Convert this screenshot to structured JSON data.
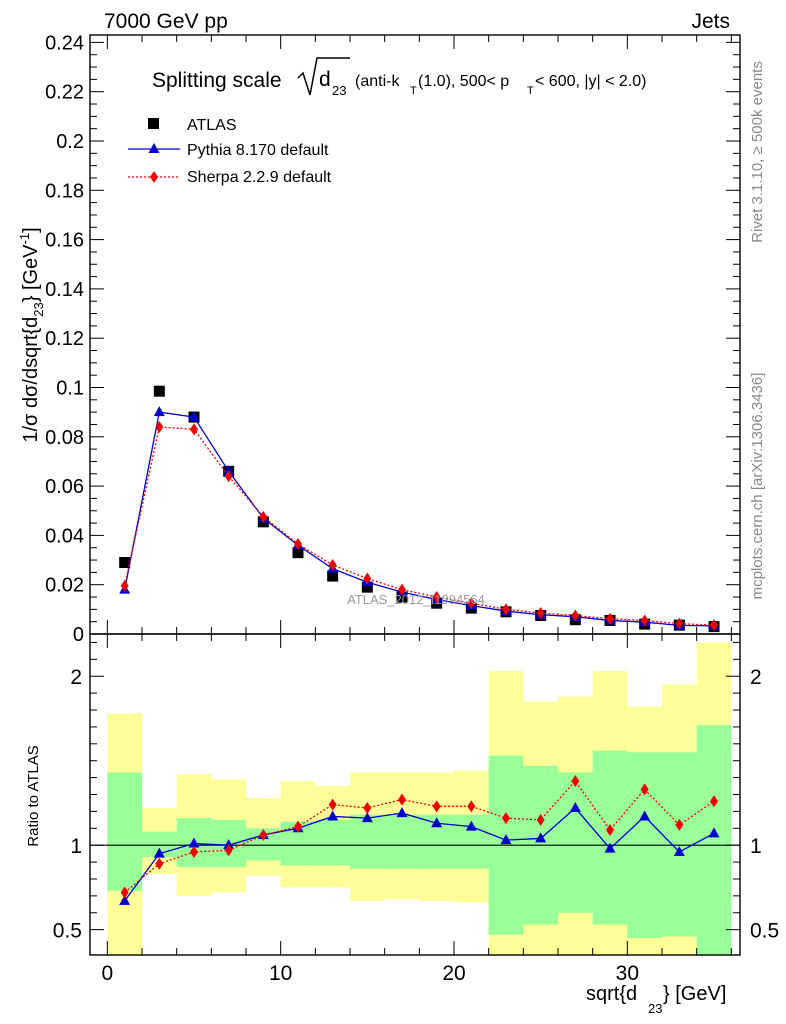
{
  "header": {
    "left": "7000 GeV pp",
    "right": "Jets"
  },
  "side_text": {
    "rivet": "Rivet 3.1.10, ≥ 500k events",
    "mcplots": "mcplots.cern.ch [arXiv:1306.3436]"
  },
  "title_parts": {
    "prefix": "Splitting scale",
    "var": "d",
    "var_sub": "23",
    "cut_open": "(anti-k",
    "cut_k_sub": "T",
    "cut_mid": "(1.0), 500< p",
    "cut_p_sub": "T",
    "cut_end": " < 600, |y| < 2.0)"
  },
  "analysis_tag": "ATLAS_2012_I1094564",
  "legend": {
    "atlas": "ATLAS",
    "pythia": "Pythia 8.170 default",
    "sherpa": "Sherpa 2.2.9 default"
  },
  "colors": {
    "atlas": "#000000",
    "pythia": "#0000cc",
    "sherpa": "#ee0000",
    "band_inner": "#99ff99",
    "band_outer": "#ffff99"
  },
  "chart_data": [
    {
      "type": "line",
      "panel": "main",
      "ylabel": "1/σ dσ/dsqrt{d23} [GeV-1]",
      "ylim": [
        0,
        0.243
      ],
      "xlim": [
        -1,
        36.5
      ],
      "yticks": [
        0,
        0.02,
        0.04,
        0.06,
        0.08,
        0.1,
        0.12,
        0.14,
        0.16,
        0.18,
        0.2,
        0.22,
        0.24
      ],
      "ytick_labels": [
        "0",
        "0.02",
        "0.04",
        "0.06",
        "0.08",
        "0.1",
        "0.12",
        "0.14",
        "0.16",
        "0.18",
        "0.2",
        "0.22",
        "0.24"
      ],
      "x": [
        1,
        3,
        5,
        7,
        9,
        11,
        13,
        15,
        17,
        19,
        21,
        23,
        25,
        27,
        29,
        31,
        33,
        35
      ],
      "series": [
        {
          "name": "ATLAS",
          "marker": "square",
          "values": [
            0.029,
            0.0985,
            0.088,
            0.066,
            0.0455,
            0.033,
            0.0235,
            0.019,
            0.015,
            0.0125,
            0.0105,
            0.009,
            0.0075,
            0.0058,
            0.0055,
            0.004,
            0.0036,
            0.003
          ]
        },
        {
          "name": "Pythia 8.170 default",
          "marker": "triangle",
          "values": [
            0.018,
            0.09,
            0.088,
            0.066,
            0.047,
            0.036,
            0.0265,
            0.021,
            0.017,
            0.014,
            0.0115,
            0.0093,
            0.0078,
            0.007,
            0.0055,
            0.0048,
            0.0035,
            0.0033
          ]
        },
        {
          "name": "Sherpa 2.2.9 default",
          "marker": "diamond",
          "values": [
            0.0195,
            0.084,
            0.083,
            0.064,
            0.0475,
            0.0365,
            0.028,
            0.0225,
            0.018,
            0.015,
            0.0125,
            0.01,
            0.0085,
            0.0075,
            0.0062,
            0.0055,
            0.0042,
            0.0036
          ]
        }
      ]
    },
    {
      "type": "line",
      "panel": "ratio",
      "ylabel": "Ratio to ATLAS",
      "xlabel": "sqrt{d23} [GeV]",
      "ylim": [
        0.35,
        2.25
      ],
      "xlim": [
        -1,
        36.5
      ],
      "yticks": [
        0.5,
        1,
        2
      ],
      "ytick_labels": [
        "0.5",
        "1",
        "2"
      ],
      "xticks": [
        0,
        10,
        20,
        30
      ],
      "xtick_labels": [
        "0",
        "10",
        "20",
        "30"
      ],
      "x": [
        1,
        3,
        5,
        7,
        9,
        11,
        13,
        15,
        17,
        19,
        21,
        23,
        25,
        27,
        29,
        31,
        33,
        35
      ],
      "bin_edges": [
        0,
        2,
        4,
        6,
        8,
        10,
        12,
        14,
        16,
        18,
        20,
        22,
        24,
        26,
        28,
        30,
        32,
        34,
        36
      ],
      "band_inner": [
        [
          0.73,
          1.43
        ],
        [
          0.93,
          1.08
        ],
        [
          0.87,
          1.16
        ],
        [
          0.87,
          1.15
        ],
        [
          0.91,
          1.1
        ],
        [
          0.88,
          1.14
        ],
        [
          0.88,
          1.15
        ],
        [
          0.86,
          1.18
        ],
        [
          0.86,
          1.18
        ],
        [
          0.86,
          1.18
        ],
        [
          0.86,
          1.18
        ],
        [
          0.47,
          1.53
        ],
        [
          0.53,
          1.47
        ],
        [
          0.6,
          1.43
        ],
        [
          0.53,
          1.56
        ],
        [
          0.45,
          1.55
        ],
        [
          0.46,
          1.55
        ],
        [
          0.35,
          1.71
        ]
      ],
      "band_outer": [
        [
          0.35,
          1.78
        ],
        [
          0.83,
          1.22
        ],
        [
          0.7,
          1.42
        ],
        [
          0.72,
          1.39
        ],
        [
          0.82,
          1.28
        ],
        [
          0.75,
          1.38
        ],
        [
          0.75,
          1.35
        ],
        [
          0.67,
          1.43
        ],
        [
          0.68,
          1.43
        ],
        [
          0.67,
          1.43
        ],
        [
          0.66,
          1.44
        ],
        [
          0.35,
          2.03
        ],
        [
          0.35,
          1.85
        ],
        [
          0.35,
          1.88
        ],
        [
          0.35,
          2.03
        ],
        [
          0.35,
          1.82
        ],
        [
          0.35,
          1.95
        ],
        [
          0.35,
          2.2
        ]
      ],
      "series": [
        {
          "name": "Pythia 8.170 default",
          "marker": "triangle",
          "values": [
            0.67,
            0.95,
            1.01,
            1.0,
            1.06,
            1.1,
            1.17,
            1.16,
            1.19,
            1.13,
            1.11,
            1.03,
            1.04,
            1.22,
            0.98,
            1.17,
            0.96,
            1.07
          ]
        },
        {
          "name": "Sherpa 2.2.9 default",
          "marker": "diamond",
          "values": [
            0.72,
            0.89,
            0.96,
            0.97,
            1.06,
            1.11,
            1.24,
            1.22,
            1.27,
            1.23,
            1.23,
            1.16,
            1.15,
            1.38,
            1.09,
            1.33,
            1.12,
            1.26
          ]
        }
      ]
    }
  ]
}
